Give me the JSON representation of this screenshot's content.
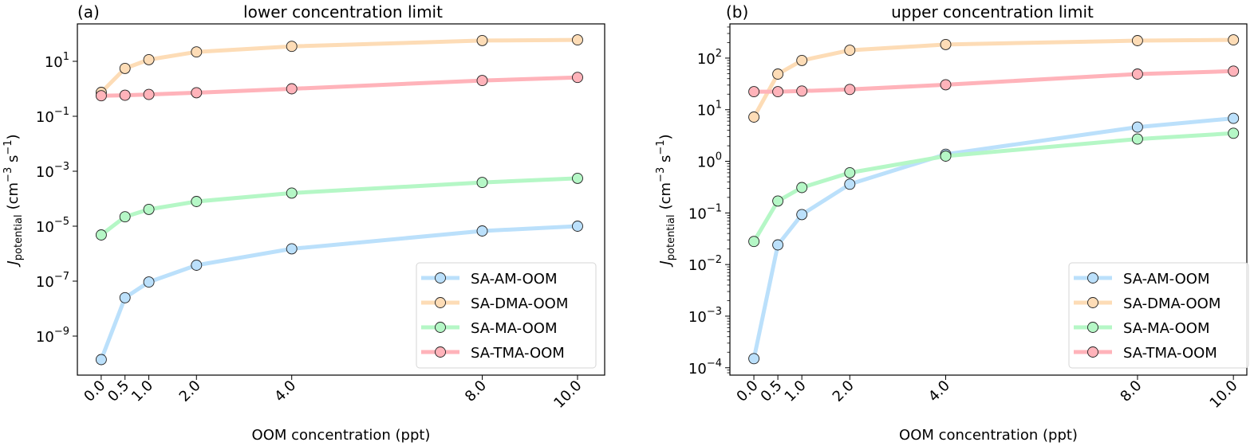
{
  "chart_data": [
    {
      "type": "line",
      "panel_label": "(a)",
      "title": "lower concentration limit",
      "xlabel": "OOM concentration (ppt)",
      "ylabel_main": "J",
      "ylabel_sub": "potential",
      "ylabel_units_prefix": "(cm",
      "ylabel_units_exp1": "−3",
      "ylabel_units_mid": " s",
      "ylabel_units_exp2": "−1",
      "ylabel_units_suffix": ")",
      "yscale": "log",
      "ylim": [
        3.8e-11,
        230
      ],
      "xlim": [
        -0.5,
        10.57
      ],
      "x": [
        0.0,
        0.5,
        1.0,
        2.0,
        4.0,
        8.0,
        10.0
      ],
      "xtick_labels": [
        "0.0",
        "0.5",
        "1.0",
        "2.0",
        "4.0",
        "8.0",
        "10.0"
      ],
      "yticks": [
        {
          "value": 10.0,
          "base": "10",
          "exp": "1"
        },
        {
          "value": 0.1,
          "base": "10",
          "exp": "−1"
        },
        {
          "value": 0.001,
          "base": "10",
          "exp": "−3"
        },
        {
          "value": 1e-05,
          "base": "10",
          "exp": "−5"
        },
        {
          "value": 1e-07,
          "base": "10",
          "exp": "−7"
        },
        {
          "value": 1e-09,
          "base": "10",
          "exp": "−9"
        }
      ],
      "minor_ticks": false,
      "legend_position": "lower-right",
      "series": [
        {
          "name": "SA-AM-OOM",
          "color": "#bbe0fb",
          "values": [
            1.4e-10,
            2.5e-08,
            9.3e-08,
            3.8e-07,
            1.5e-06,
            6.7e-06,
            1e-05
          ]
        },
        {
          "name": "SA-DMA-OOM",
          "color": "#fddcb6",
          "values": [
            0.74,
            5.5,
            11.5,
            22,
            35,
            57,
            60
          ]
        },
        {
          "name": "SA-MA-OOM",
          "color": "#b5f7c6",
          "values": [
            4.8e-06,
            2.2e-05,
            4.1e-05,
            7.9e-05,
            0.00016,
            0.00039,
            0.00055
          ]
        },
        {
          "name": "SA-TMA-OOM",
          "color": "#ffb3ba",
          "values": [
            0.56,
            0.58,
            0.62,
            0.72,
            1.0,
            2.0,
            2.6
          ]
        }
      ]
    },
    {
      "type": "line",
      "panel_label": "(b)",
      "title": "upper concentration limit",
      "xlabel": "OOM concentration (ppt)",
      "ylabel_main": "J",
      "ylabel_sub": "potential",
      "ylabel_units_prefix": "(cm",
      "ylabel_units_exp1": "−3",
      "ylabel_units_mid": " s",
      "ylabel_units_exp2": "−1",
      "ylabel_units_suffix": ")",
      "yscale": "log",
      "ylim": [
        7.2e-05,
        460
      ],
      "xlim": [
        -0.5,
        10.28
      ],
      "x": [
        0.0,
        0.5,
        1.0,
        2.0,
        4.0,
        8.0,
        10.0
      ],
      "xtick_labels": [
        "0.0",
        "0.5",
        "1.0",
        "2.0",
        "4.0",
        "8.0",
        "10.0"
      ],
      "yticks": [
        {
          "value": 100.0,
          "base": "10",
          "exp": "2"
        },
        {
          "value": 10.0,
          "base": "10",
          "exp": "1"
        },
        {
          "value": 1.0,
          "base": "10",
          "exp": "0"
        },
        {
          "value": 0.1,
          "base": "10",
          "exp": "−1"
        },
        {
          "value": 0.01,
          "base": "10",
          "exp": "−2"
        },
        {
          "value": 0.001,
          "base": "10",
          "exp": "−3"
        },
        {
          "value": 0.0001,
          "base": "10",
          "exp": "−4"
        }
      ],
      "minor_ticks": true,
      "legend_position": "lower-right",
      "series": [
        {
          "name": "SA-AM-OOM",
          "color": "#bbe0fb",
          "values": [
            0.00015,
            0.024,
            0.093,
            0.36,
            1.37,
            4.6,
            6.8
          ]
        },
        {
          "name": "SA-DMA-OOM",
          "color": "#fddcb6",
          "values": [
            7.2,
            49,
            90,
            142,
            183,
            218,
            225
          ]
        },
        {
          "name": "SA-MA-OOM",
          "color": "#b5f7c6",
          "values": [
            0.028,
            0.17,
            0.31,
            0.6,
            1.26,
            2.7,
            3.5
          ]
        },
        {
          "name": "SA-TMA-OOM",
          "color": "#ffb3ba",
          "values": [
            22.4,
            22.4,
            23,
            24.7,
            30.5,
            49,
            56
          ]
        }
      ]
    }
  ]
}
